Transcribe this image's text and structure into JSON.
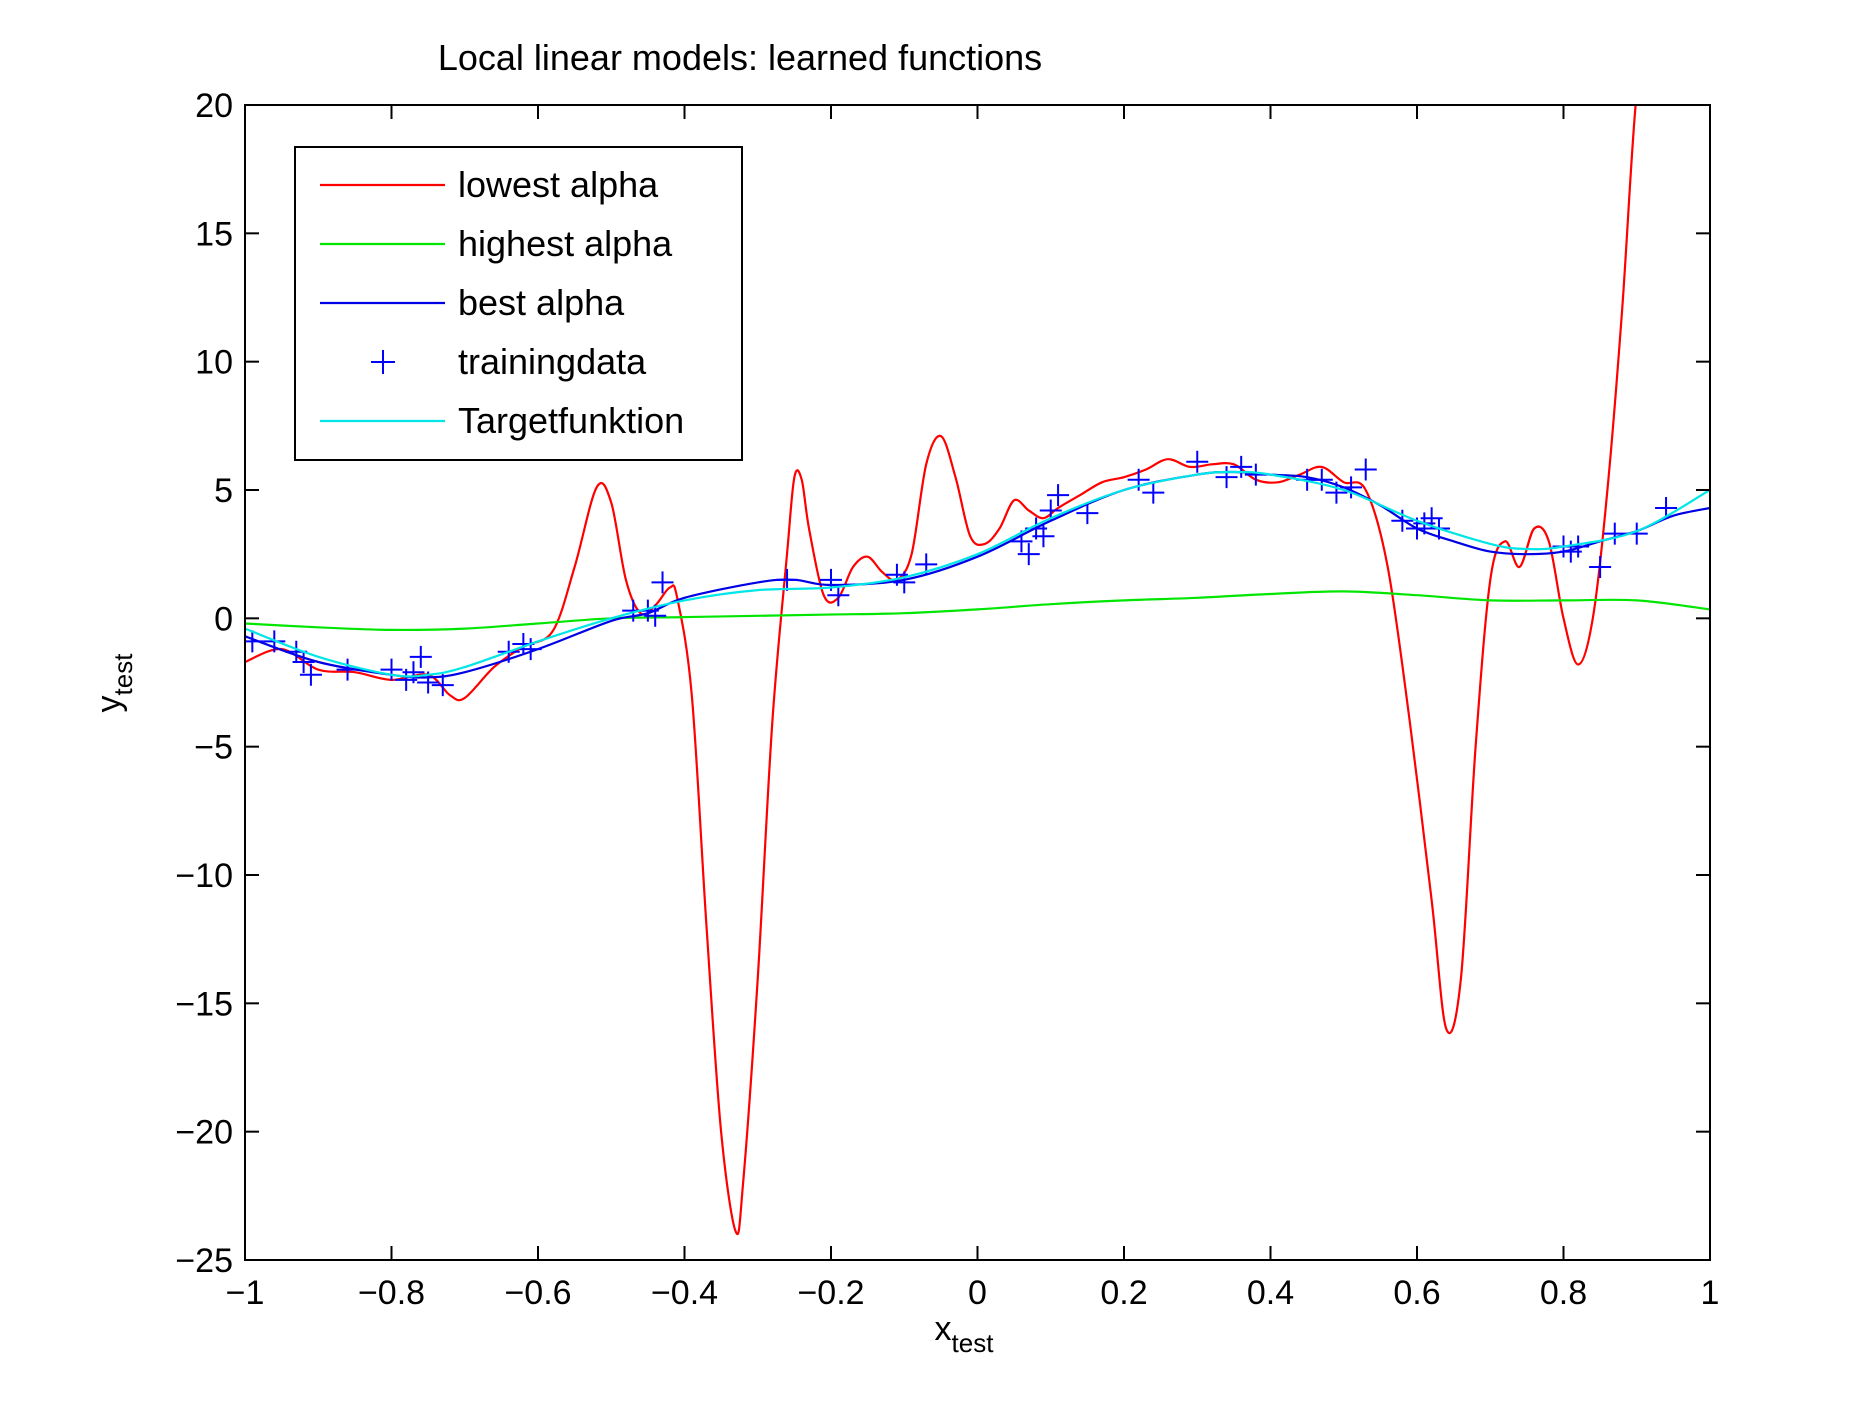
{
  "chart_data": {
    "type": "line",
    "title": "Local linear models: learned functions",
    "xlabel_main": "x",
    "xlabel_sub": "test",
    "ylabel_main": "y",
    "ylabel_sub": "test",
    "xlim": [
      -1,
      1
    ],
    "ylim": [
      -25,
      20
    ],
    "xticks": [
      -1,
      -0.8,
      -0.6,
      -0.4,
      -0.2,
      0,
      0.2,
      0.4,
      0.6,
      0.8,
      1
    ],
    "xtick_labels": [
      "−1",
      "−0.8",
      "−0.6",
      "−0.4",
      "−0.2",
      "0",
      "0.2",
      "0.4",
      "0.6",
      "0.8",
      "1"
    ],
    "yticks": [
      -25,
      -20,
      -15,
      -10,
      -5,
      0,
      5,
      10,
      15,
      20
    ],
    "ytick_labels": [
      "−25",
      "−20",
      "−15",
      "−10",
      "−5",
      "0",
      "5",
      "10",
      "15",
      "20"
    ],
    "grid": false,
    "legend_position": "top-left",
    "series": [
      {
        "name": "lowest alpha",
        "color": "#ff0000",
        "style": "line",
        "x": [
          -1.0,
          -0.95,
          -0.9,
          -0.85,
          -0.8,
          -0.75,
          -0.72,
          -0.7,
          -0.66,
          -0.62,
          -0.58,
          -0.55,
          -0.52,
          -0.5,
          -0.48,
          -0.46,
          -0.44,
          -0.42,
          -0.41,
          -0.39,
          -0.37,
          -0.35,
          -0.33,
          -0.32,
          -0.3,
          -0.28,
          -0.26,
          -0.25,
          -0.24,
          -0.23,
          -0.21,
          -0.19,
          -0.17,
          -0.15,
          -0.13,
          -0.11,
          -0.09,
          -0.07,
          -0.05,
          -0.03,
          -0.01,
          0.01,
          0.03,
          0.05,
          0.07,
          0.09,
          0.11,
          0.14,
          0.17,
          0.2,
          0.23,
          0.26,
          0.29,
          0.32,
          0.35,
          0.38,
          0.41,
          0.44,
          0.47,
          0.5,
          0.53,
          0.56,
          0.59,
          0.62,
          0.64,
          0.66,
          0.68,
          0.7,
          0.72,
          0.74,
          0.76,
          0.78,
          0.8,
          0.82,
          0.84,
          0.86,
          0.88,
          0.9,
          0.92,
          0.93,
          0.94,
          0.95,
          0.96
        ],
        "y": [
          -1.7,
          -1.2,
          -2.0,
          -2.1,
          -2.4,
          -2.2,
          -3.0,
          -3.1,
          -1.9,
          -1.1,
          -0.5,
          2.0,
          5.1,
          4.5,
          1.5,
          0.2,
          0.5,
          1.2,
          0.8,
          -3.0,
          -12.0,
          -20.0,
          -23.9,
          -22.0,
          -14.0,
          -4.0,
          2.5,
          5.5,
          5.4,
          3.5,
          0.9,
          0.8,
          2.0,
          2.4,
          1.8,
          1.5,
          2.5,
          6.0,
          7.1,
          5.5,
          3.2,
          2.9,
          3.5,
          4.6,
          4.2,
          3.9,
          4.3,
          4.8,
          5.3,
          5.5,
          5.8,
          6.2,
          5.9,
          6.0,
          6.0,
          5.4,
          5.3,
          5.6,
          5.9,
          5.3,
          5.0,
          2.0,
          -4.0,
          -11.0,
          -16.0,
          -14.0,
          -5.0,
          1.5,
          3.0,
          2.0,
          3.5,
          3.0,
          0.0,
          -1.8,
          0.0,
          5.0,
          12.0,
          20.5,
          23.0,
          21.5,
          21.0,
          21.0,
          21.0
        ],
        "note": ""
      },
      {
        "name": "highest alpha",
        "color": "#00e600",
        "style": "line",
        "x": [
          -1.0,
          -0.9,
          -0.8,
          -0.7,
          -0.6,
          -0.5,
          -0.4,
          -0.3,
          -0.2,
          -0.1,
          0.0,
          0.1,
          0.2,
          0.3,
          0.4,
          0.5,
          0.6,
          0.7,
          0.8,
          0.9,
          1.0
        ],
        "y": [
          -0.2,
          -0.35,
          -0.45,
          -0.4,
          -0.2,
          0.0,
          0.05,
          0.1,
          0.15,
          0.2,
          0.35,
          0.55,
          0.7,
          0.8,
          0.95,
          1.05,
          0.9,
          0.7,
          0.7,
          0.7,
          0.35
        ]
      },
      {
        "name": "best alpha",
        "color": "#0000e6",
        "style": "line",
        "x": [
          -1.0,
          -0.9,
          -0.8,
          -0.75,
          -0.7,
          -0.6,
          -0.5,
          -0.45,
          -0.4,
          -0.3,
          -0.25,
          -0.2,
          -0.1,
          0.0,
          0.1,
          0.2,
          0.3,
          0.35,
          0.4,
          0.45,
          0.5,
          0.55,
          0.6,
          0.65,
          0.7,
          0.75,
          0.8,
          0.85,
          0.9,
          0.95,
          1.0
        ],
        "y": [
          -0.7,
          -1.7,
          -2.2,
          -2.3,
          -2.1,
          -1.2,
          -0.1,
          0.2,
          0.8,
          1.4,
          1.5,
          1.3,
          1.5,
          2.4,
          3.8,
          5.0,
          5.6,
          5.7,
          5.6,
          5.5,
          5.1,
          4.4,
          3.5,
          3.0,
          2.6,
          2.5,
          2.6,
          3.0,
          3.4,
          4.0,
          4.3
        ]
      },
      {
        "name": "trainingdata",
        "color": "#0000ff",
        "style": "marker",
        "x": [
          -0.99,
          -0.96,
          -0.93,
          -0.92,
          -0.91,
          -0.86,
          -0.8,
          -0.78,
          -0.77,
          -0.76,
          -0.75,
          -0.73,
          -0.64,
          -0.62,
          -0.61,
          -0.47,
          -0.45,
          -0.44,
          -0.43,
          -0.26,
          -0.2,
          -0.19,
          -0.11,
          -0.1,
          -0.07,
          0.06,
          0.07,
          0.08,
          0.09,
          0.1,
          0.11,
          0.15,
          0.22,
          0.24,
          0.3,
          0.34,
          0.36,
          0.38,
          0.45,
          0.47,
          0.49,
          0.51,
          0.53,
          0.58,
          0.6,
          0.61,
          0.62,
          0.63,
          0.8,
          0.81,
          0.82,
          0.85,
          0.87,
          0.9,
          0.94
        ],
        "y": [
          -0.9,
          -0.9,
          -1.3,
          -1.7,
          -2.2,
          -2.0,
          -2.0,
          -2.4,
          -2.1,
          -1.5,
          -2.5,
          -2.6,
          -1.3,
          -1.0,
          -1.2,
          0.3,
          0.3,
          0.1,
          1.4,
          1.5,
          1.5,
          0.9,
          1.7,
          1.4,
          2.1,
          3.0,
          2.5,
          3.5,
          3.2,
          4.2,
          4.8,
          4.1,
          5.4,
          4.9,
          6.1,
          5.5,
          5.9,
          5.6,
          5.4,
          5.4,
          4.9,
          5.1,
          5.8,
          3.8,
          3.5,
          3.7,
          3.9,
          3.5,
          2.8,
          2.6,
          2.8,
          2.0,
          3.3,
          3.3,
          4.3
        ]
      },
      {
        "name": "Targetfunktion",
        "color": "#00e6e6",
        "style": "line",
        "x": [
          -1.0,
          -0.9,
          -0.8,
          -0.75,
          -0.7,
          -0.6,
          -0.5,
          -0.4,
          -0.3,
          -0.2,
          -0.1,
          0.0,
          0.1,
          0.2,
          0.3,
          0.35,
          0.4,
          0.5,
          0.6,
          0.7,
          0.75,
          0.8,
          0.9,
          1.0
        ],
        "y": [
          -0.4,
          -1.5,
          -2.2,
          -2.2,
          -1.9,
          -0.9,
          0.0,
          0.7,
          1.1,
          1.2,
          1.6,
          2.5,
          3.9,
          5.0,
          5.6,
          5.7,
          5.6,
          5.0,
          3.8,
          2.9,
          2.7,
          2.8,
          3.4,
          5.0
        ]
      }
    ]
  }
}
